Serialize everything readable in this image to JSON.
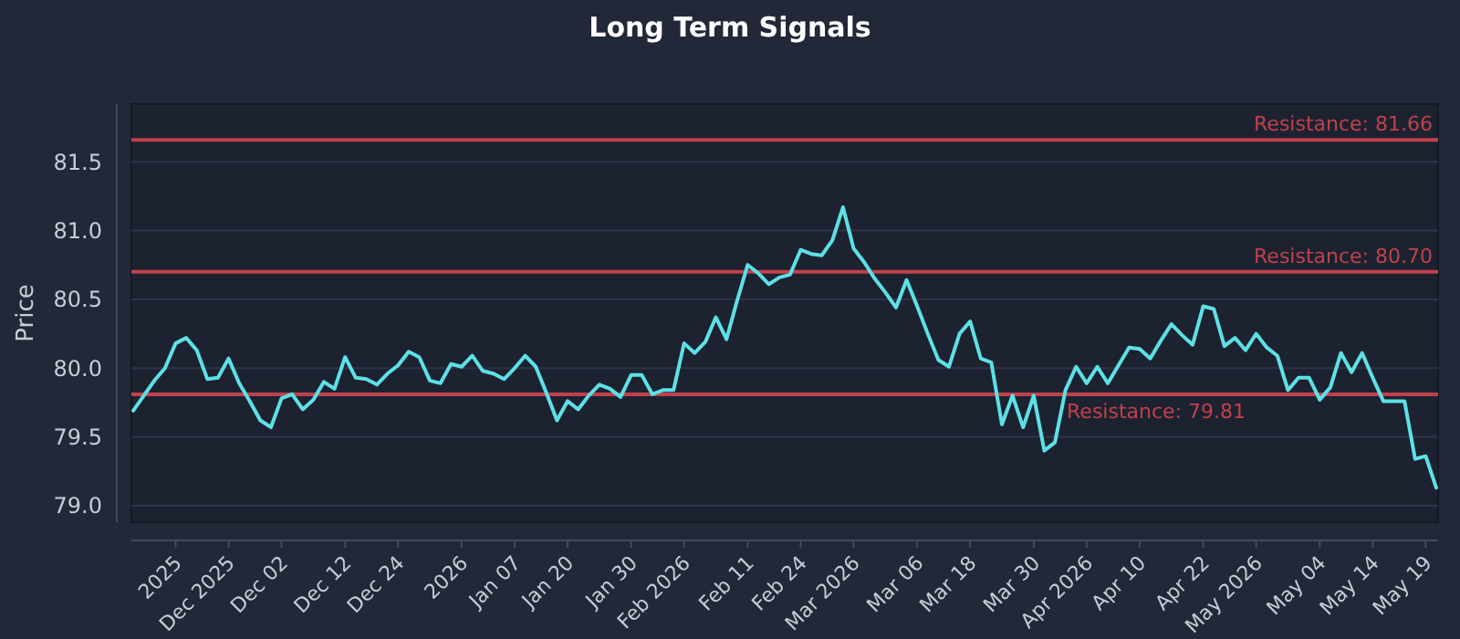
{
  "chart_data": {
    "type": "line",
    "title": "Long Term Signals",
    "ylabel": "Price",
    "categories": [
      null,
      null,
      null,
      null,
      "2025",
      null,
      null,
      null,
      null,
      "Dec 2025",
      null,
      null,
      null,
      null,
      "Dec 02",
      null,
      null,
      null,
      null,
      null,
      "Dec 12",
      null,
      null,
      null,
      null,
      "Dec 24",
      null,
      null,
      null,
      null,
      null,
      "2026",
      null,
      null,
      null,
      null,
      "Jan 07",
      null,
      null,
      null,
      null,
      "Jan 20",
      null,
      null,
      null,
      null,
      null,
      "Jan 30",
      null,
      null,
      null,
      null,
      "Feb 2026",
      null,
      null,
      null,
      null,
      null,
      "Feb 11",
      null,
      null,
      null,
      null,
      "Feb 24",
      null,
      null,
      null,
      null,
      "Mar 2026",
      null,
      null,
      null,
      null,
      null,
      "Mar 06",
      null,
      null,
      null,
      null,
      "Mar 18",
      null,
      null,
      null,
      null,
      null,
      "Mar 30",
      null,
      null,
      null,
      null,
      "Apr 2026",
      null,
      null,
      null,
      null,
      "Apr 10",
      null,
      null,
      null,
      null,
      null,
      "Apr 22",
      null,
      null,
      null,
      null,
      "May 2026",
      null,
      null,
      null,
      null,
      null,
      "May 04",
      null,
      null,
      null,
      null,
      "May 14",
      null,
      null,
      null,
      null,
      "May 19",
      null
    ],
    "series": [
      {
        "color": "#5ce1e6",
        "values": [
          79.69,
          79.8,
          79.91,
          80.0,
          80.18,
          80.22,
          80.13,
          79.92,
          79.93,
          80.07,
          79.89,
          79.76,
          79.62,
          79.57,
          79.78,
          79.81,
          79.7,
          79.77,
          79.9,
          79.85,
          80.08,
          79.93,
          79.92,
          79.88,
          79.96,
          80.02,
          80.12,
          80.08,
          79.91,
          79.89,
          80.03,
          80.01,
          80.09,
          79.98,
          79.96,
          79.92,
          80.0,
          80.09,
          80.01,
          79.82,
          79.62,
          79.76,
          79.7,
          79.8,
          79.88,
          79.85,
          79.79,
          79.95,
          79.95,
          79.81,
          79.84,
          79.84,
          80.18,
          80.11,
          80.19,
          80.37,
          80.21,
          80.49,
          80.75,
          80.69,
          80.61,
          80.66,
          80.68,
          80.86,
          80.83,
          80.82,
          80.93,
          81.17,
          80.87,
          80.77,
          80.65,
          80.55,
          80.44,
          80.64,
          80.45,
          80.25,
          80.06,
          80.01,
          80.25,
          80.34,
          80.07,
          80.04,
          79.59,
          79.8,
          79.57,
          79.8,
          79.4,
          79.46,
          79.84,
          80.01,
          79.89,
          80.01,
          79.89,
          80.02,
          80.15,
          80.14,
          80.07,
          80.2,
          80.32,
          80.24,
          80.17,
          80.45,
          80.43,
          80.16,
          80.22,
          80.13,
          80.25,
          80.15,
          80.09,
          79.84,
          79.93,
          79.93,
          79.77,
          79.86,
          80.11,
          79.97,
          80.11,
          79.93,
          79.76,
          79.76,
          79.76,
          79.34,
          79.36,
          79.13
        ]
      }
    ],
    "ylim": [
      78.88,
      81.92
    ],
    "yticks": [
      {
        "value": 79.0,
        "label": "79.0"
      },
      {
        "value": 79.5,
        "label": "79.5"
      },
      {
        "value": 80.0,
        "label": "80.0"
      },
      {
        "value": 80.5,
        "label": "80.5"
      },
      {
        "value": 81.0,
        "label": "81.0"
      },
      {
        "value": 81.5,
        "label": "81.5"
      }
    ],
    "grid": "y",
    "marker": "none",
    "line_style": "solid",
    "ref_lines": [
      {
        "axis": "y",
        "value": 81.66,
        "label": "Resistance: 81.66",
        "color": "#c0414b"
      },
      {
        "axis": "y",
        "value": 80.7,
        "label": "Resistance: 80.70",
        "color": "#c0414b"
      },
      {
        "axis": "y",
        "value": 79.81,
        "label": "Resistance: 79.81",
        "color": "#c0414b"
      }
    ]
  }
}
